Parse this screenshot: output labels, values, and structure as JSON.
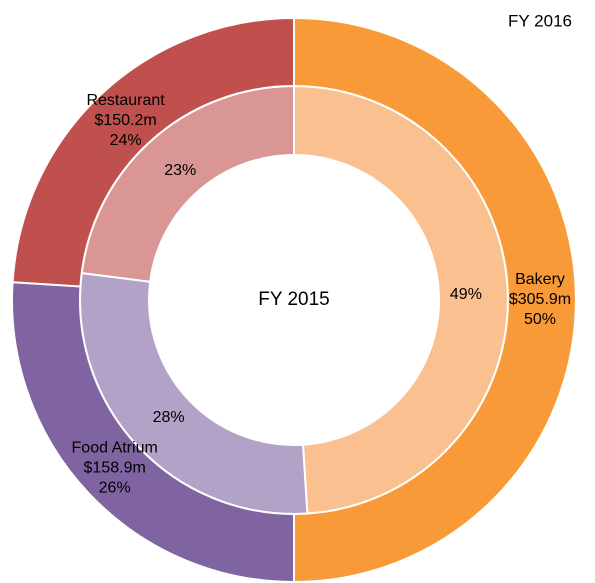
{
  "chart_data": {
    "type": "donut",
    "categories": [
      "Bakery",
      "Food Atrium",
      "Restaurant"
    ],
    "series": [
      {
        "name": "FY 2016",
        "values": [
          50,
          26,
          24
        ],
        "value_labels": [
          "50%",
          "26%",
          "24%"
        ],
        "amounts": [
          305.9,
          158.9,
          150.2
        ],
        "amount_labels": [
          "$305.9m",
          "$158.9m",
          "$150.2m"
        ],
        "colors": [
          "#f99a38",
          "#8064a2",
          "#c0504d"
        ]
      },
      {
        "name": "FY 2015",
        "values": [
          49,
          28,
          23
        ],
        "value_labels": [
          "49%",
          "28%",
          "23%"
        ],
        "colors": [
          "#fac090",
          "#b3a2c7",
          "#d99694"
        ]
      }
    ]
  }
}
